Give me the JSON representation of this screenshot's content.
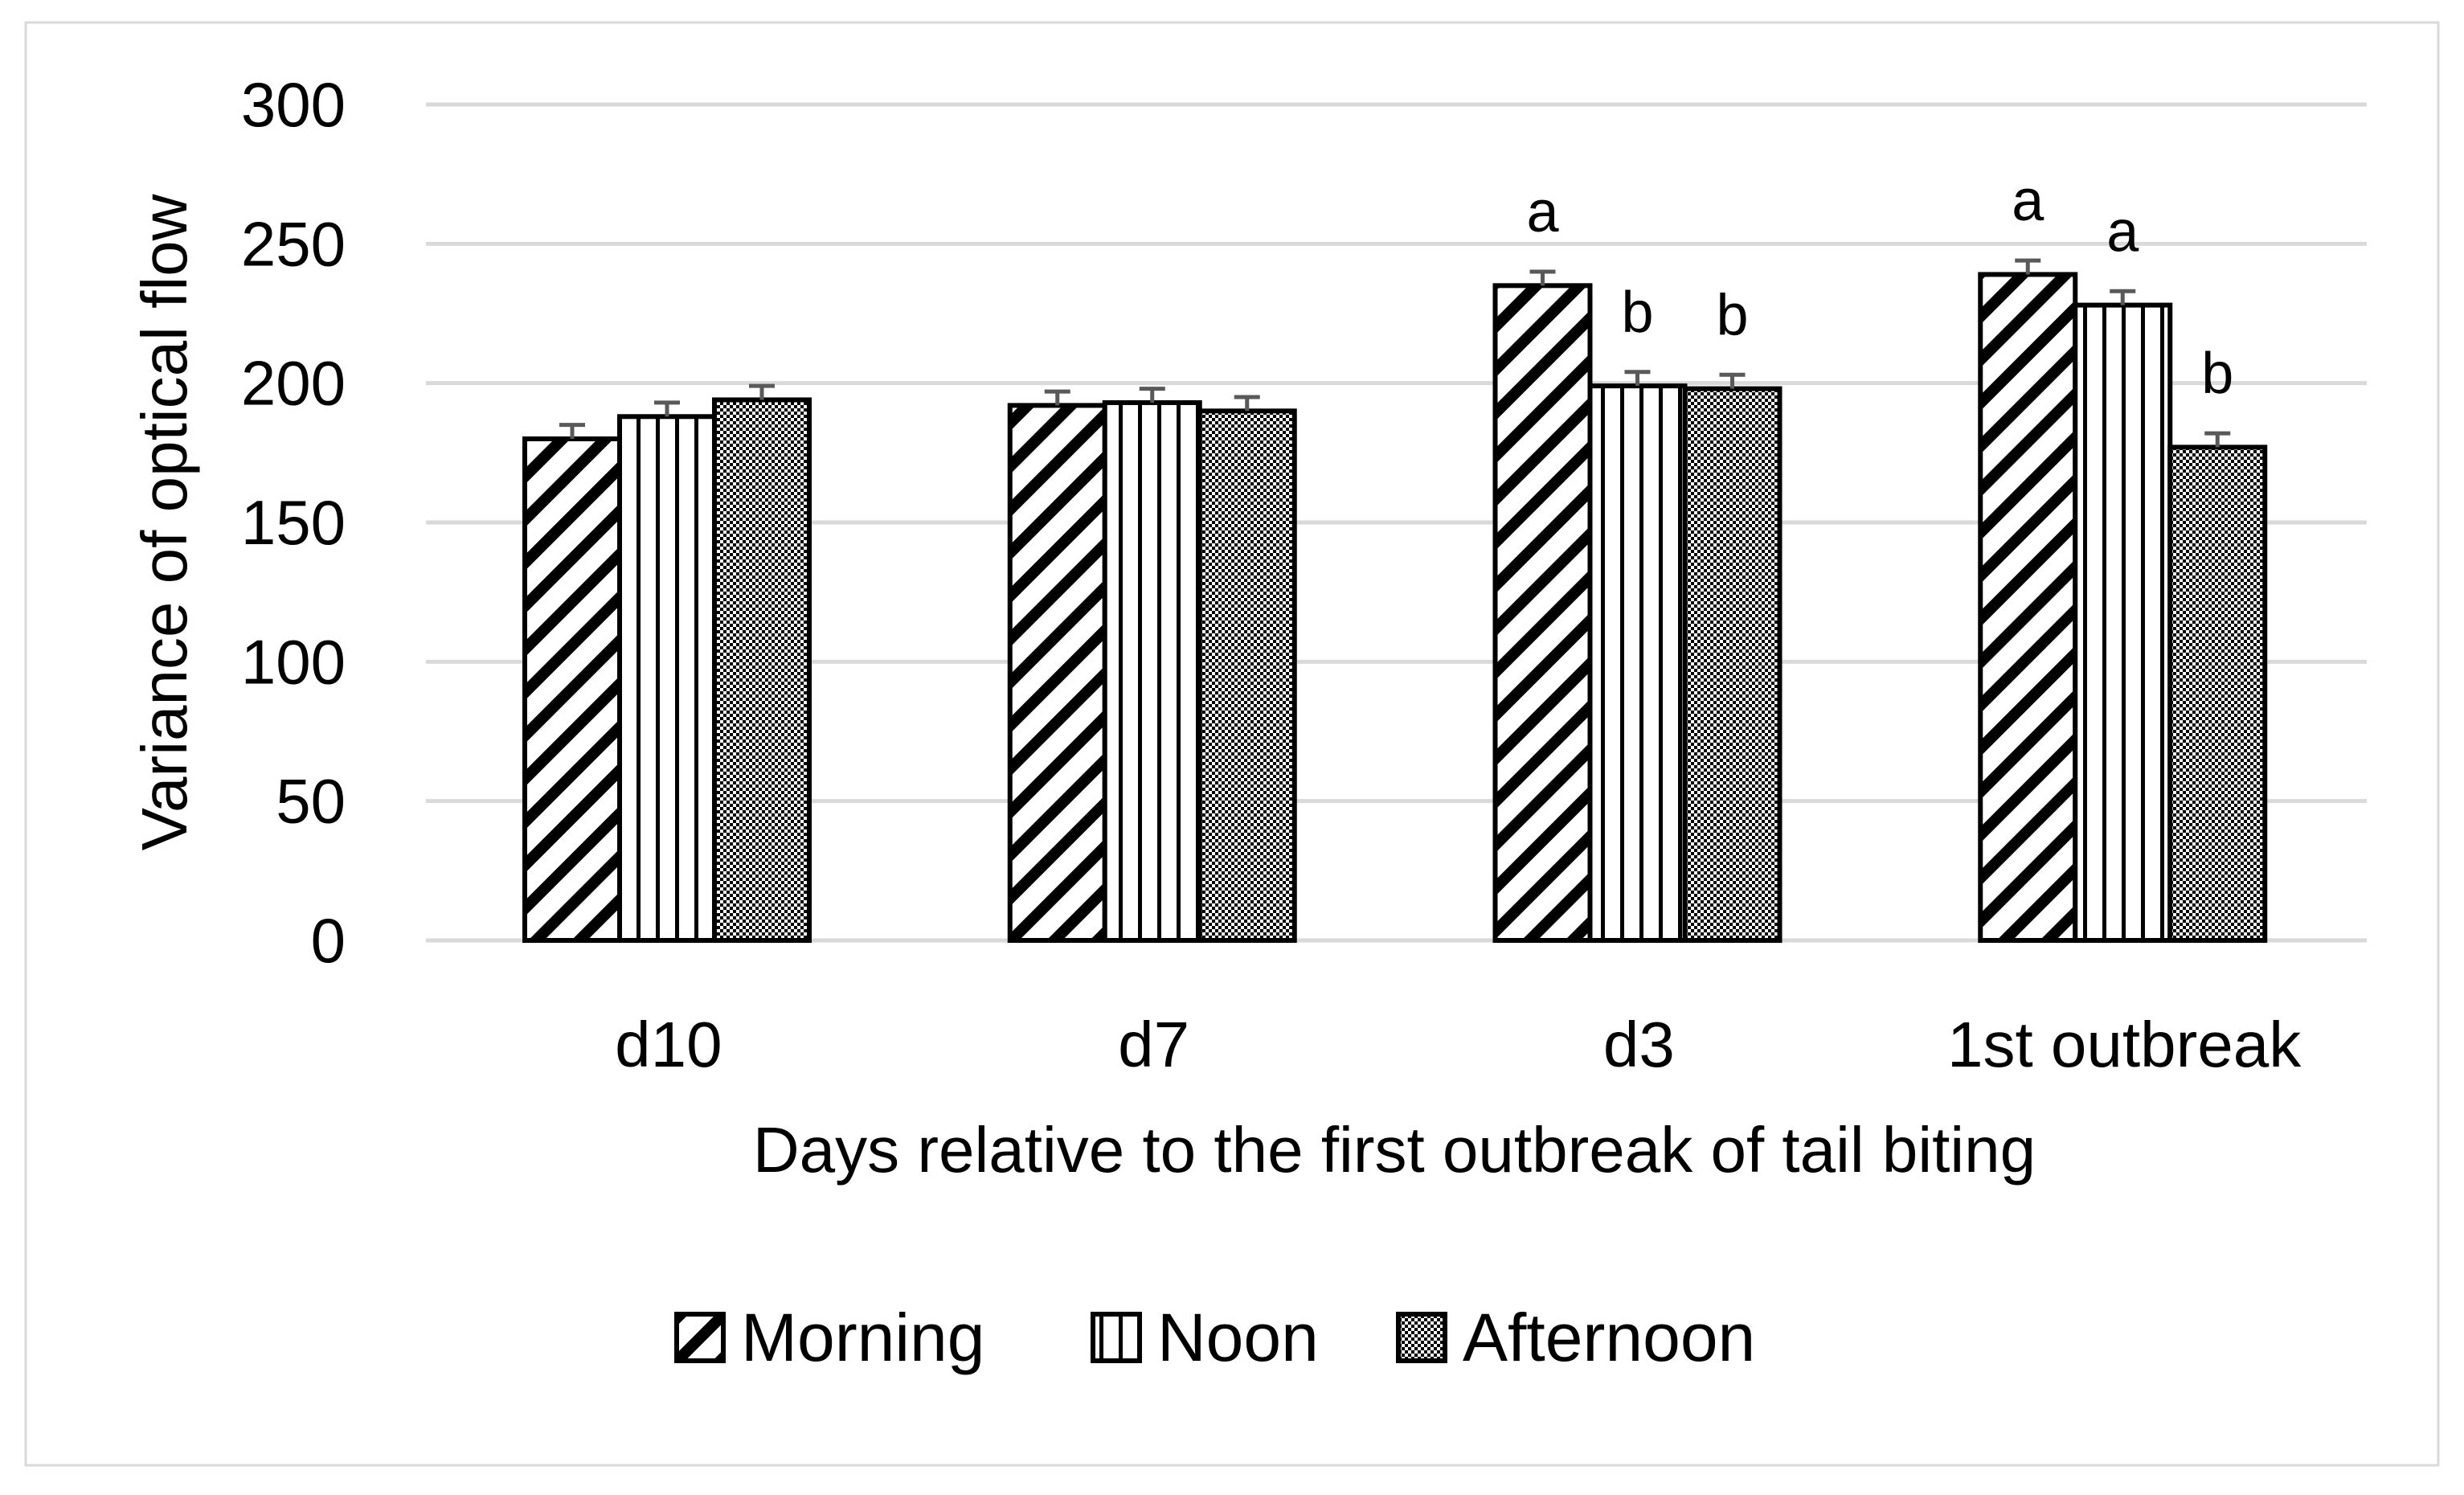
{
  "chart_data": {
    "type": "bar",
    "title": "",
    "xlabel": "Days relative to the first outbreak of tail biting",
    "ylabel": "Variance of optical flow",
    "ylim": [
      0,
      300
    ],
    "yticks": [
      0,
      50,
      100,
      150,
      200,
      250,
      300
    ],
    "ytick_labels": [
      "0",
      "50",
      "100",
      "150",
      "200",
      "250",
      "300"
    ],
    "grid": true,
    "legend_position": "bottom",
    "categories": [
      "d10",
      "d7",
      "d3",
      "1st outbreak"
    ],
    "series": [
      {
        "name": "Morning",
        "pattern": "diagonal-hatch",
        "values": [
          180,
          192,
          235,
          239
        ],
        "errors": [
          5,
          5,
          5,
          5
        ],
        "labels": [
          "",
          "",
          "a",
          "a"
        ]
      },
      {
        "name": "Noon",
        "pattern": "vertical-stripes",
        "values": [
          188,
          193,
          199,
          228
        ],
        "errors": [
          5,
          5,
          5,
          5
        ],
        "labels": [
          "",
          "",
          "b",
          "a"
        ]
      },
      {
        "name": "Afternoon",
        "pattern": "checker-dots",
        "values": [
          194,
          190,
          198,
          177
        ],
        "errors": [
          5,
          5,
          5,
          5
        ],
        "labels": [
          "",
          "",
          "b",
          "b"
        ]
      }
    ]
  },
  "colors": {
    "bar_stroke": "#000000",
    "grid": "#d9d9d9",
    "error_bar": "#595959",
    "frame": "#d9d9d9"
  }
}
